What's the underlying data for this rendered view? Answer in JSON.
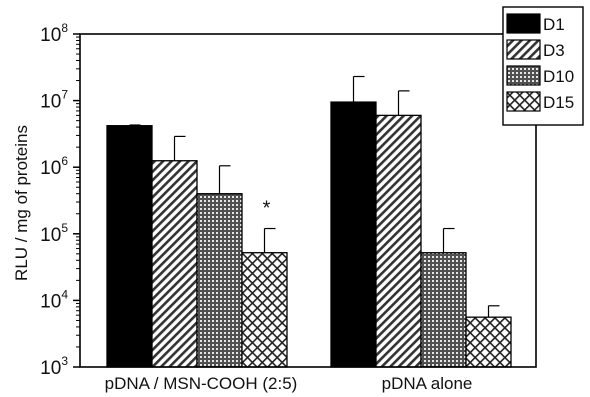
{
  "chart_data": {
    "type": "bar",
    "ylabel": "RLU / mg of proteins",
    "yscale": "log",
    "ylim": [
      1000,
      100000000
    ],
    "yticks": [
      {
        "value": 1000,
        "base": "10",
        "exp": "3"
      },
      {
        "value": 10000,
        "base": "10",
        "exp": "4"
      },
      {
        "value": 100000,
        "base": "10",
        "exp": "5"
      },
      {
        "value": 1000000,
        "base": "10",
        "exp": "6"
      },
      {
        "value": 10000000,
        "base": "10",
        "exp": "7"
      },
      {
        "value": 100000000,
        "base": "10",
        "exp": "8"
      }
    ],
    "categories": [
      "pDNA / MSN-COOH (2:5)",
      "pDNA alone"
    ],
    "series": [
      {
        "name": "D1",
        "pattern": "solid",
        "values": [
          4200000,
          9500000
        ],
        "errors_upper": [
          4300000,
          23000000
        ]
      },
      {
        "name": "D3",
        "pattern": "diagonal",
        "values": [
          1250000,
          6000000
        ],
        "errors_upper": [
          2900000,
          14000000
        ]
      },
      {
        "name": "D10",
        "pattern": "dots",
        "values": [
          400000,
          52000
        ],
        "errors_upper": [
          1050000,
          120000
        ]
      },
      {
        "name": "D15",
        "pattern": "crosshatch",
        "values": [
          52000,
          5600
        ],
        "errors_upper": [
          120000,
          8300
        ]
      }
    ],
    "annotations": [
      {
        "text": "*",
        "series": "D15",
        "category": "pDNA / MSN-COOH (2:5)"
      }
    ],
    "legend": {
      "position": "top-right"
    },
    "grid": false
  }
}
